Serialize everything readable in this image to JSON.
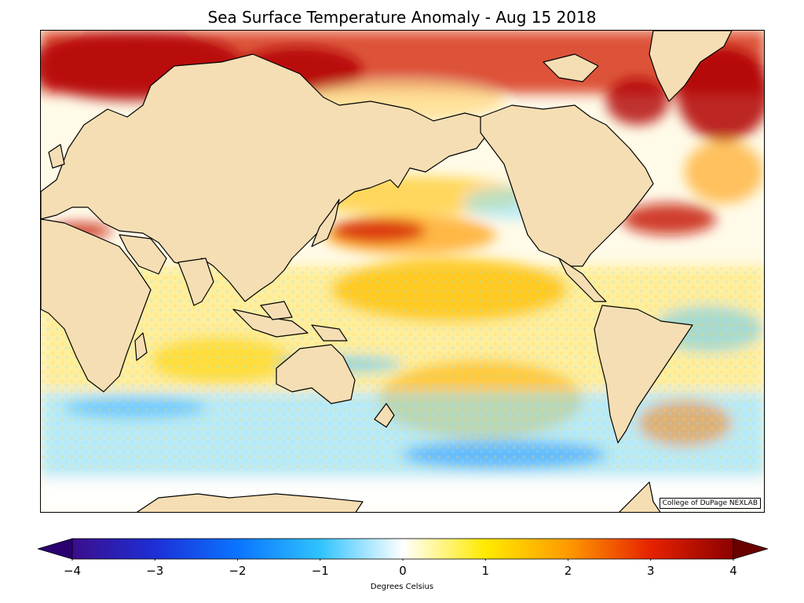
{
  "title": "Sea Surface Temperature Anomaly - Aug 15 2018",
  "credit": "College of DuPage NEXLAB",
  "colorbar": {
    "label": "Degrees Celsius",
    "min": -4,
    "max": 4,
    "ticks": [
      "−4",
      "−3",
      "−2",
      "−1",
      "0",
      "1",
      "2",
      "3",
      "4"
    ],
    "colors": [
      "#3b0e8c",
      "#1d2fd6",
      "#0a74ff",
      "#2fc3ff",
      "#ffffff",
      "#ffea00",
      "#ff9a00",
      "#e62200",
      "#8c0000"
    ]
  },
  "map": {
    "projection": "Miller cylindrical, Pacific-centered",
    "land_color": "#f5deb3",
    "coastline_color": "#000000"
  }
}
